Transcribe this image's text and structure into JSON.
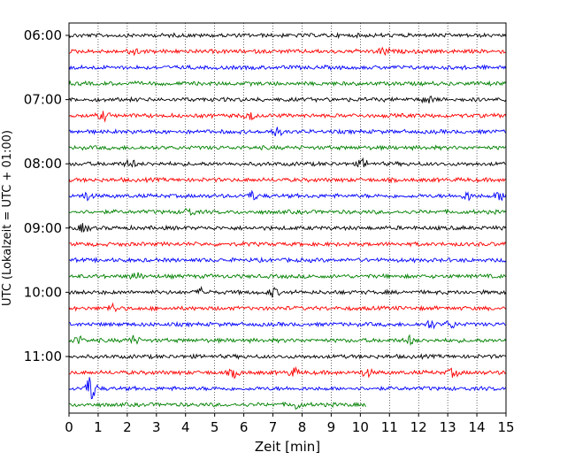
{
  "chart_data": {
    "type": "line",
    "title": "",
    "xlabel": "Zeit  [min]",
    "ylabel": "UTC (Lokalzeit = UTC + 01:00)",
    "xlim": [
      0,
      15
    ],
    "x_ticks": [
      "0",
      "1",
      "2",
      "3",
      "4",
      "5",
      "6",
      "7",
      "8",
      "9",
      "10",
      "11",
      "12",
      "13",
      "14",
      "15"
    ],
    "y_ticks": [
      "06:00",
      "07:00",
      "08:00",
      "09:00",
      "10:00",
      "11:00"
    ],
    "grid": "vertical dotted at each minute",
    "trace_interval_minutes": 15,
    "first_trace_time": "06:00",
    "trace_colors": [
      "#000000",
      "#ff0000",
      "#0000ff",
      "#008000"
    ],
    "traces": [
      {
        "start": "06:00",
        "end_minute": 15,
        "color": "#000000"
      },
      {
        "start": "06:15",
        "end_minute": 15,
        "color": "#ff0000"
      },
      {
        "start": "06:30",
        "end_minute": 15,
        "color": "#0000ff"
      },
      {
        "start": "06:45",
        "end_minute": 15,
        "color": "#008000"
      },
      {
        "start": "07:00",
        "end_minute": 15,
        "color": "#000000"
      },
      {
        "start": "07:15",
        "end_minute": 15,
        "color": "#ff0000"
      },
      {
        "start": "07:30",
        "end_minute": 15,
        "color": "#0000ff"
      },
      {
        "start": "07:45",
        "end_minute": 15,
        "color": "#008000"
      },
      {
        "start": "08:00",
        "end_minute": 15,
        "color": "#000000"
      },
      {
        "start": "08:15",
        "end_minute": 15,
        "color": "#ff0000"
      },
      {
        "start": "08:30",
        "end_minute": 15,
        "color": "#0000ff"
      },
      {
        "start": "08:45",
        "end_minute": 15,
        "color": "#008000"
      },
      {
        "start": "09:00",
        "end_minute": 15,
        "color": "#000000"
      },
      {
        "start": "09:15",
        "end_minute": 15,
        "color": "#ff0000"
      },
      {
        "start": "09:30",
        "end_minute": 15,
        "color": "#0000ff"
      },
      {
        "start": "09:45",
        "end_minute": 15,
        "color": "#008000"
      },
      {
        "start": "10:00",
        "end_minute": 15,
        "color": "#000000"
      },
      {
        "start": "10:15",
        "end_minute": 15,
        "color": "#ff0000"
      },
      {
        "start": "10:30",
        "end_minute": 15,
        "color": "#0000ff"
      },
      {
        "start": "10:45",
        "end_minute": 15,
        "color": "#008000"
      },
      {
        "start": "11:00",
        "end_minute": 15,
        "color": "#000000"
      },
      {
        "start": "11:15",
        "end_minute": 15,
        "color": "#ff0000"
      },
      {
        "start": "11:30",
        "end_minute": 15,
        "color": "#0000ff"
      },
      {
        "start": "11:45",
        "end_minute": 10.2,
        "color": "#008000"
      }
    ]
  }
}
